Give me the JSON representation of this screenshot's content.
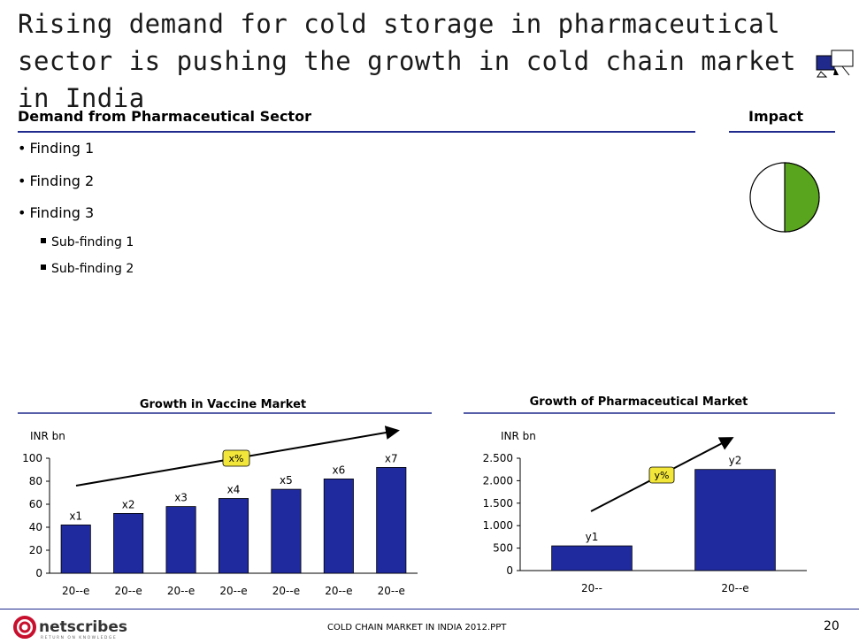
{
  "slide": {
    "title": "Rising demand for cold storage in pharmaceutical sector is pushing the growth in cold chain market in India",
    "section_heading": "Demand from Pharmaceutical Sector",
    "impact_heading": "Impact",
    "findings": [
      "Finding 1",
      "Finding 2",
      "Finding 3"
    ],
    "sub_findings": [
      "Sub-finding 1",
      "Sub-finding 2"
    ],
    "bullet_glyph": "•",
    "impact_level": 0.5,
    "impact_color": "#5aa51e",
    "accent_color": "#1f2a8c",
    "footer_text": "COLD CHAIN MARKET IN INDIA 2012.PPT",
    "page_number": "20",
    "logo_text": "netscribes",
    "logo_tagline": "RETURN ON KNOWLEDGE"
  },
  "chart_data": [
    {
      "type": "bar",
      "title": "Growth in Vaccine Market",
      "unit_label": "INR bn",
      "categories": [
        "20--e",
        "20--e",
        "20--e",
        "20--e",
        "20--e",
        "20--e",
        "20--e"
      ],
      "values": [
        42,
        52,
        58,
        65,
        73,
        82,
        92
      ],
      "data_labels": [
        "x1",
        "x2",
        "x3",
        "x4",
        "x5",
        "x6",
        "x7"
      ],
      "ylim": [
        0,
        100
      ],
      "yticks": [
        0,
        20,
        40,
        60,
        80,
        100
      ],
      "ytick_labels": [
        "0",
        "20",
        "40",
        "60",
        "80",
        "100"
      ],
      "growth_label": "x%",
      "bar_color": "#1f2a9f"
    },
    {
      "type": "bar",
      "title": "Growth of  Pharmaceutical Market",
      "unit_label": "INR bn",
      "categories": [
        "20--",
        "20--e"
      ],
      "values": [
        550,
        2250
      ],
      "data_labels": [
        "y1",
        "y2"
      ],
      "ylim": [
        0,
        2500
      ],
      "yticks": [
        0,
        500,
        1000,
        1500,
        2000,
        2500
      ],
      "ytick_labels": [
        "0",
        "500",
        "1.000",
        "1.500",
        "2.000",
        "2.500"
      ],
      "growth_label": "y%",
      "bar_color": "#1f2a9f"
    }
  ]
}
